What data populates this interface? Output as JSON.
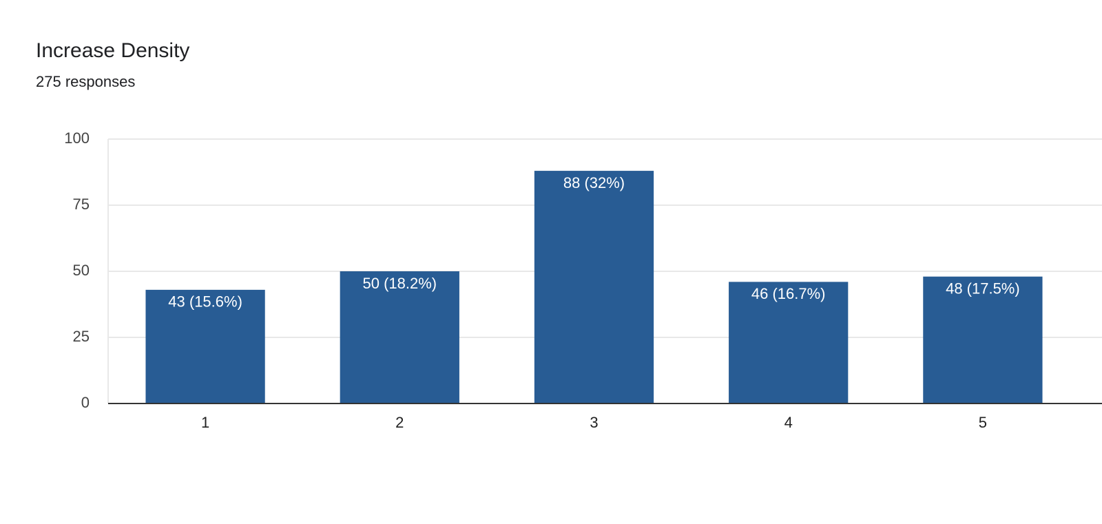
{
  "chart_data": {
    "type": "bar",
    "title": "Increase Density",
    "subtitle": "275 responses",
    "categories": [
      "1",
      "2",
      "3",
      "4",
      "5"
    ],
    "values": [
      43,
      50,
      88,
      46,
      48
    ],
    "value_labels": [
      "43 (15.6%)",
      "50 (18.2%)",
      "88 (32%)",
      "46 (16.7%)",
      "48 (17.5%)"
    ],
    "color": "#285c94",
    "ylim": [
      0,
      100
    ],
    "yticks": [
      0,
      25,
      50,
      75,
      100
    ],
    "grid": true
  }
}
